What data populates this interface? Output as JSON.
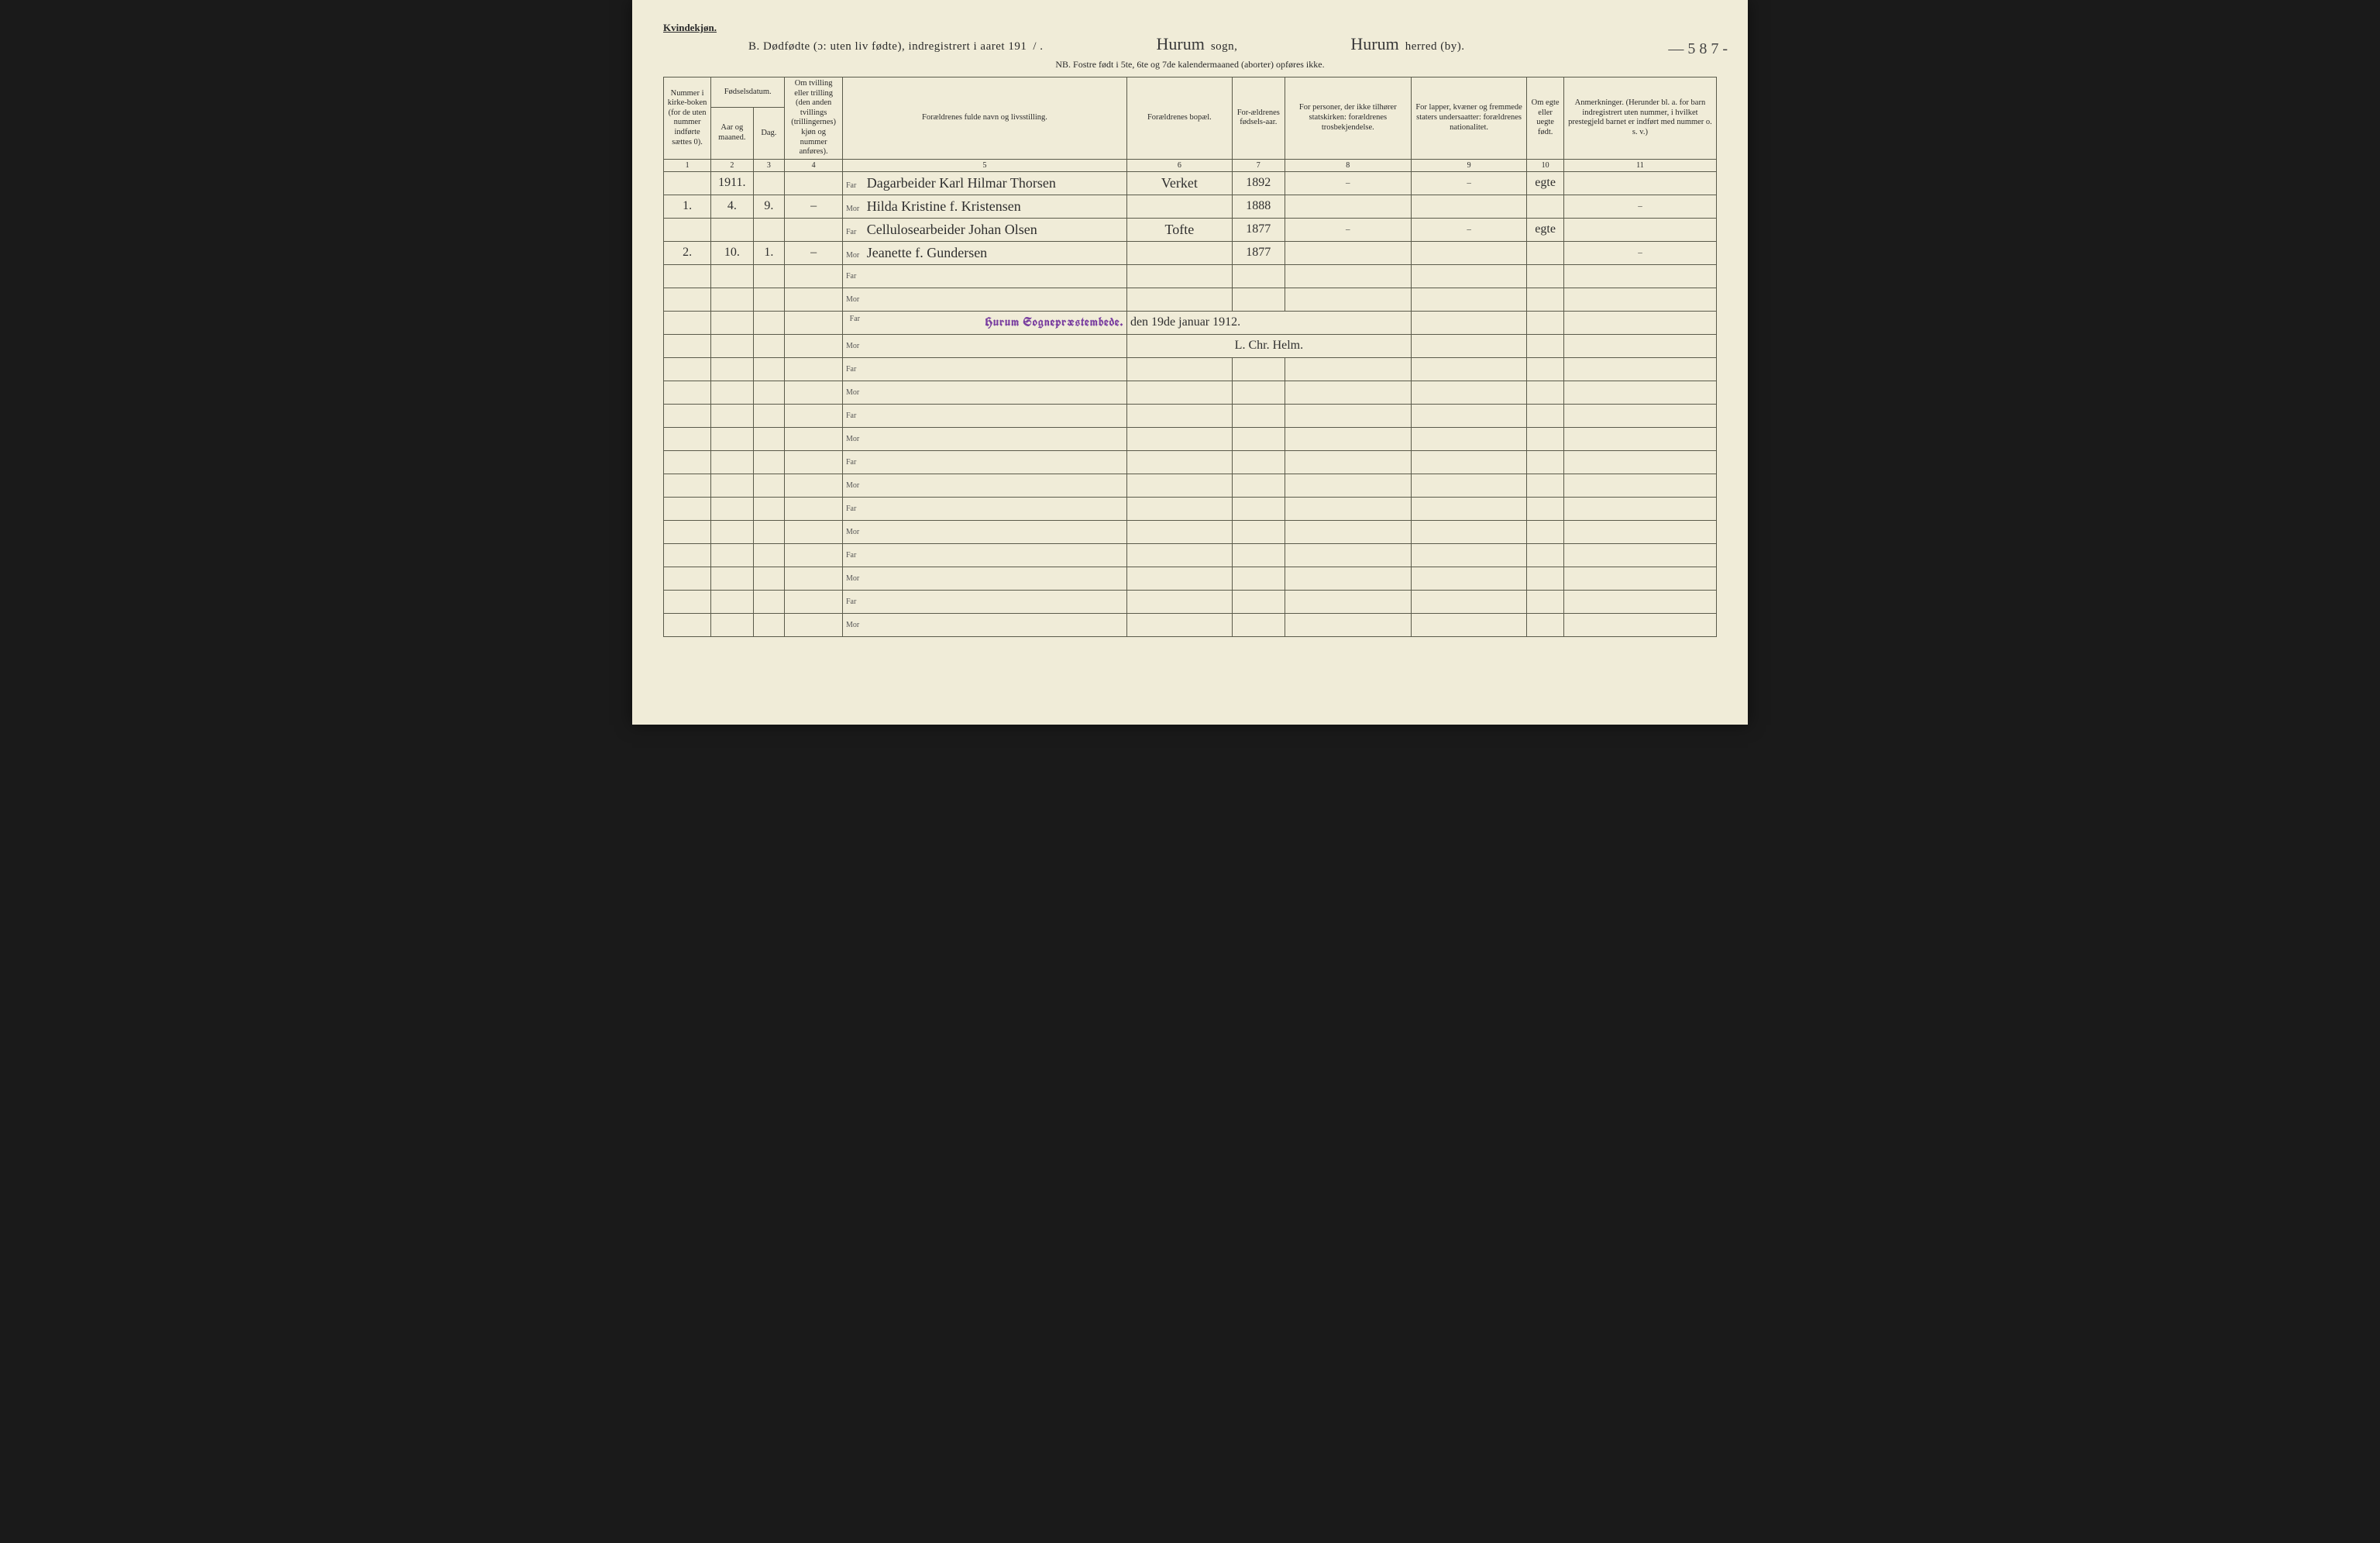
{
  "page": {
    "gender_label": "Kvindekjøn.",
    "title_prefix": "B.  Dødfødte (ɔ: uten liv fødte), indregistrert i aaret 191",
    "title_year_suffix": "/ .",
    "sogn_word": "sogn,",
    "herred_word": "herred (by).",
    "sogn_handwritten": "Hurum",
    "herred_handwritten": "Hurum",
    "side_number_handwritten": "— 5 8 7 -",
    "nb_line": "NB.  Fostre født i 5te, 6te og 7de kalendermaaned (aborter) opføres ikke."
  },
  "columns": {
    "c1": "Nummer i kirke-boken (for de uten nummer indførte sættes 0).",
    "c2_group": "Fødselsdatum.",
    "c2a": "Aar og maaned.",
    "c2b": "Dag.",
    "c4": "Om tvilling eller trilling (den anden tvillings (trillingernes) kjøn og nummer anføres).",
    "c5": "Forældrenes fulde navn og livsstilling.",
    "c6": "Forældrenes bopæl.",
    "c7": "For-ældrenes fødsels-aar.",
    "c8": "For personer, der ikke tilhører statskirken: forældrenes trosbekjendelse.",
    "c9": "For lapper, kvæner og fremmede staters undersaatter: forældrenes nationalitet.",
    "c10": "Om egte eller uegte født.",
    "c11": "Anmerkninger. (Herunder bl. a. for barn indregistrert uten nummer, i hvilket prestegjeld barnet er indført med nummer o. s. v.)"
  },
  "colnums": [
    "1",
    "2",
    "3",
    "4",
    "5",
    "6",
    "7",
    "8",
    "9",
    "10",
    "11"
  ],
  "parent_labels": {
    "far": "Far",
    "mor": "Mor"
  },
  "entries": [
    {
      "no": "1.",
      "year_header": "1911.",
      "aar_maaned": "4.",
      "dag": "9.",
      "tvilling": "–",
      "far_name": "Dagarbeider Karl Hilmar Thorsen",
      "mor_name": "Hilda Kristine f. Kristensen",
      "bopel": "Verket",
      "far_aar": "1892",
      "mor_aar": "1888",
      "stats": "–",
      "nation": "–",
      "egte": "egte",
      "anm_far": "",
      "anm_mor": "–"
    },
    {
      "no": "2.",
      "aar_maaned": "10.",
      "dag": "1.",
      "tvilling": "–",
      "far_name": "Cellulosearbeider Johan Olsen",
      "mor_name": "Jeanette f. Gundersen",
      "bopel": "Tofte",
      "far_aar": "1877",
      "mor_aar": "1877",
      "stats": "–",
      "nation": "–",
      "egte": "egte",
      "anm_far": "",
      "anm_mor": "–"
    }
  ],
  "signature": {
    "stamp": "Hurum Sognepræstembede.",
    "date_line": "den 19de januar 1912.",
    "sign_line": "L. Chr. Helm."
  },
  "colors": {
    "paper": "#f0ecd8",
    "ink": "#2a2a2a",
    "rule": "#5a5a4a",
    "stamp": "#7a3fa0",
    "background": "#1a1a1a"
  }
}
